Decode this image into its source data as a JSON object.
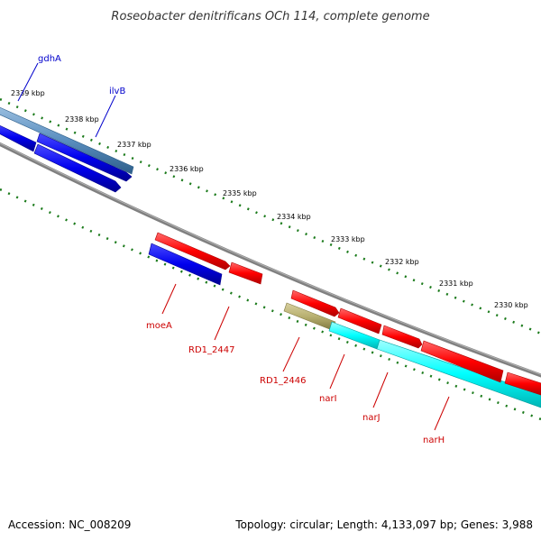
{
  "title": "Roseobacter denitrificans OCh 114, complete genome",
  "footer": {
    "accession": "Accession: NC_008209",
    "summary": "Topology: circular; Length: 4,133,097 bp; Genes: 3,988"
  },
  "kbp_labels": [
    "2339 kbp",
    "2338 kbp",
    "2337 kbp",
    "2336 kbp",
    "2335 kbp",
    "2334 kbp",
    "2333 kbp",
    "2332 kbp",
    "2331 kbp",
    "2330 kbp"
  ],
  "genes": [
    {
      "name": "gdhA",
      "color": "#0000cc"
    },
    {
      "name": "ilvB",
      "color": "#0000cc"
    },
    {
      "name": "moeA",
      "color": "#cc0000"
    },
    {
      "name": "RD1_2447",
      "color": "#cc0000"
    },
    {
      "name": "RD1_2446",
      "color": "#cc0000"
    },
    {
      "name": "narI",
      "color": "#cc0000"
    },
    {
      "name": "narJ",
      "color": "#cc0000"
    },
    {
      "name": "narH",
      "color": "#cc0000"
    }
  ],
  "colors": {
    "backbone": "#808080",
    "tick": "#1a7a1a",
    "forward_feature": "#ff0000",
    "reverse_feature": "#0000ee",
    "steelblue_feature": "#5b8fc0",
    "cyan_feature": "#00ffff",
    "olive_feature": "#b8b070"
  }
}
